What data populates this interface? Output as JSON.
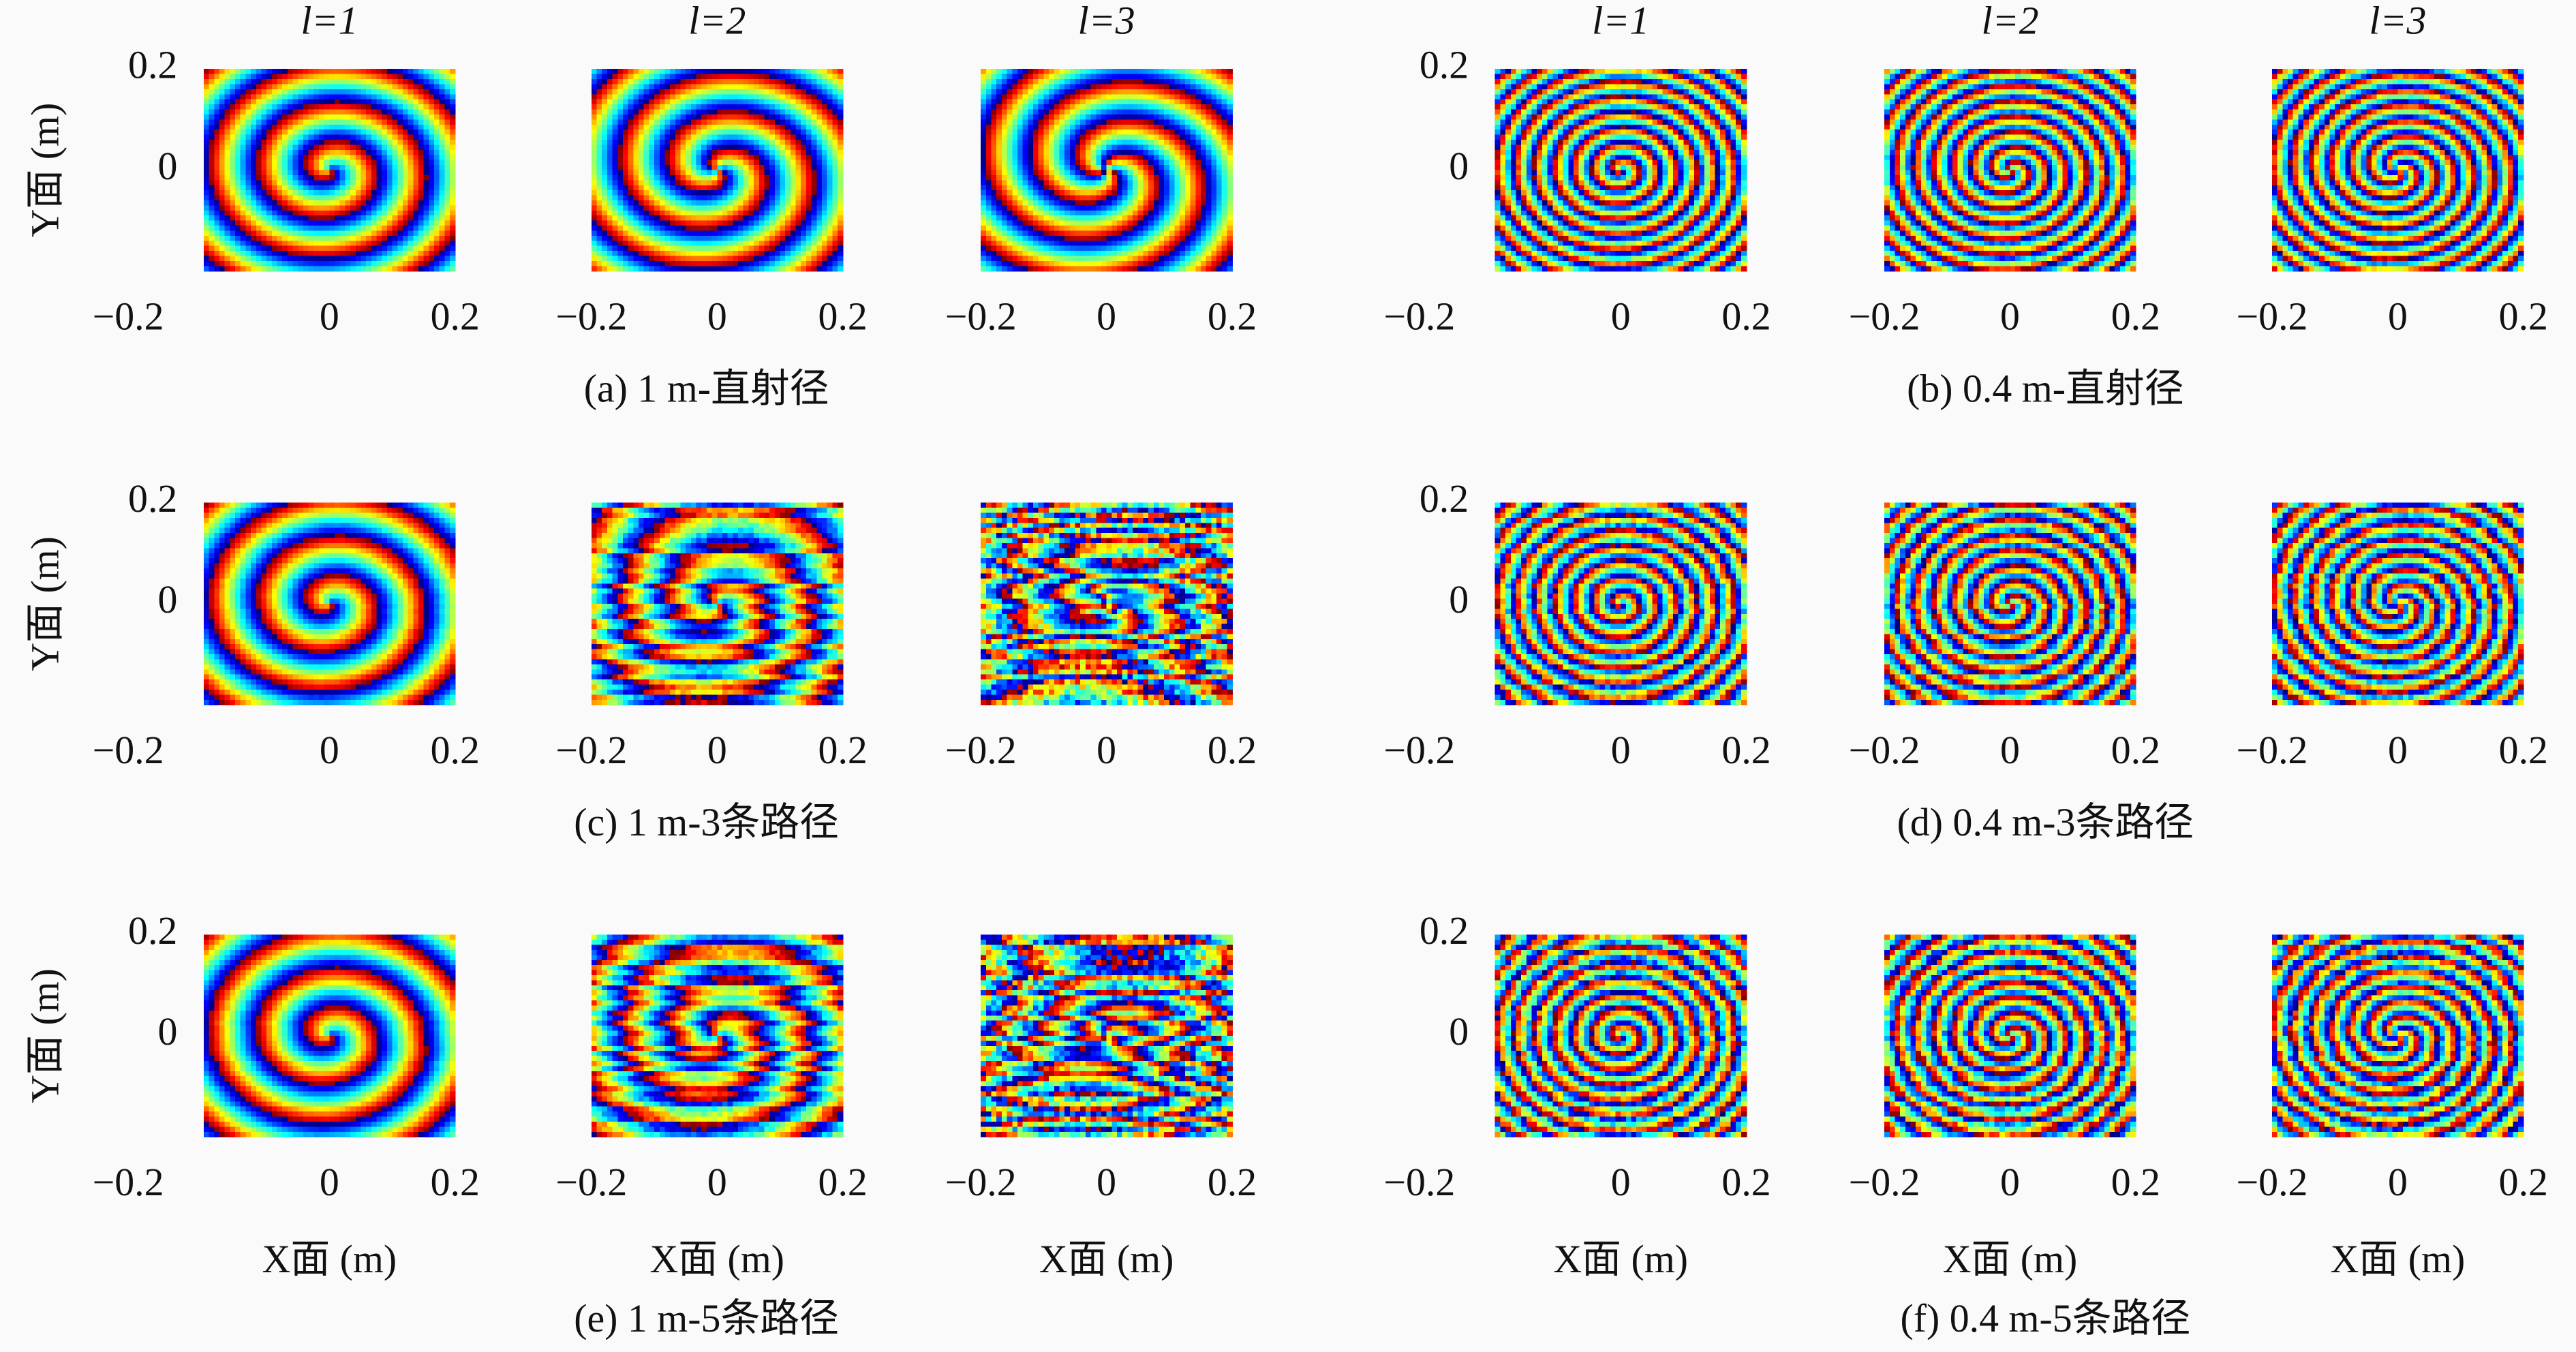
{
  "column_titles": [
    "l=1",
    "l=2",
    "l=3",
    "l=1",
    "l=2",
    "l=3"
  ],
  "axes": {
    "xlim": [
      -0.2,
      0.2
    ],
    "ylim": [
      -0.2,
      0.2
    ],
    "xticks": [
      {
        "value": -0.2,
        "label": "−0.2"
      },
      0,
      0.2
    ],
    "yticks": [
      0,
      0.2
    ],
    "x_label": "X面 (m)",
    "y_label": "Y面 (m)"
  },
  "captions": [
    "(a) 1 m-直射径",
    "(b) 0.4 m-直射径",
    "(c) 1 m-3条路径",
    "(d) 0.4 m-3条路径",
    "(e) 1 m-5条路径",
    "(f) 0.4 m-5条路径"
  ]
}
